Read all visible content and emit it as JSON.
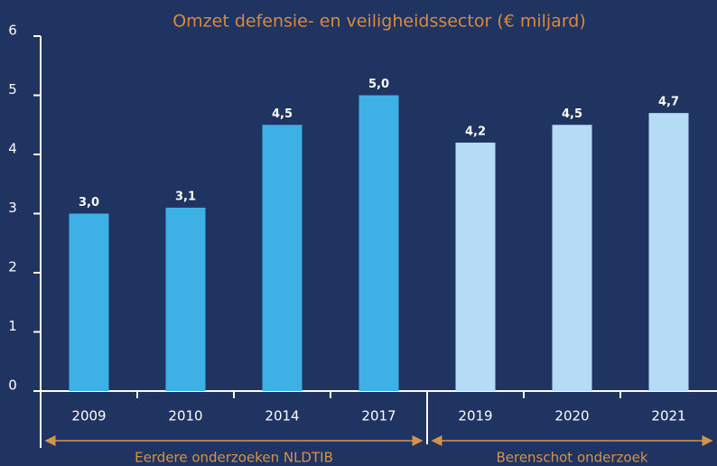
{
  "chart_data": {
    "type": "bar",
    "title": "Omzet defensie- en veiligheidssector (€ miljard)",
    "categories": [
      "2009",
      "2010",
      "2014",
      "2017",
      "2019",
      "2020",
      "2021"
    ],
    "values": [
      3.0,
      3.1,
      4.5,
      5.0,
      4.2,
      4.5,
      4.7
    ],
    "value_labels": [
      "3,0",
      "3,1",
      "4,5",
      "5,0",
      "4,2",
      "4,5",
      "4,7"
    ],
    "colors": [
      "#3db1e6",
      "#3db1e6",
      "#3db1e6",
      "#3db1e6",
      "#b5dcf4",
      "#b5dcf4",
      "#b5dcf4"
    ],
    "ylim": [
      0,
      6
    ],
    "yticks": [
      0,
      1,
      2,
      3,
      4,
      5,
      6
    ],
    "grid": false,
    "annotations": [
      {
        "text": "Eerdere onderzoeken NLDTIB",
        "from": "2009",
        "to": "2017"
      },
      {
        "text": "Berenschot onderzoek",
        "from": "2019",
        "to": "2021"
      }
    ]
  }
}
